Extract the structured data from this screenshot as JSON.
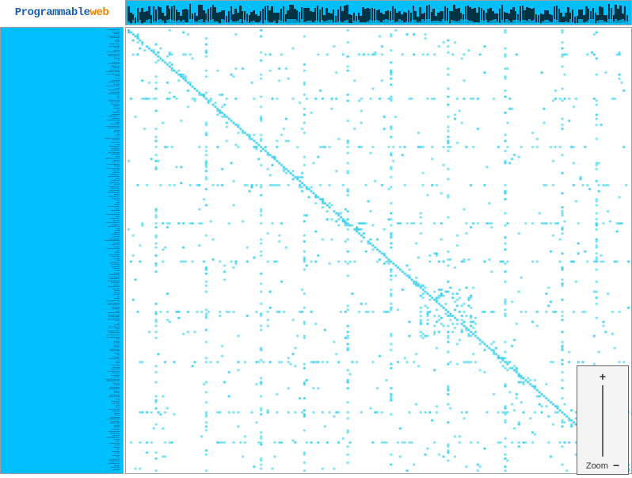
{
  "logo": {
    "part1": "Programmable",
    "part2": "web"
  },
  "zoom": {
    "plus": "+",
    "minus": "−",
    "label": "Zoom"
  },
  "colors": {
    "accent": "#00bfff",
    "cell_light": "#7fe8ff",
    "cell_med": "#33ccee",
    "border": "#9aa0a6",
    "bg": "#ffffff",
    "dark": "#003344"
  },
  "matrix": {
    "type": "adjacency-matrix",
    "n": 220,
    "seed": 42,
    "diagonal_density": 0.95,
    "near_diag_density": 0.18,
    "band_width": 6,
    "sparse_density": 0.01,
    "dense_rows": [
      12,
      34,
      58,
      77,
      96,
      115,
      140,
      165,
      190,
      205
    ],
    "dense_row_density": 0.22,
    "dense_block": {
      "start": 128,
      "end": 152,
      "density": 0.18
    },
    "cell_color": "#66ddf0",
    "cell_color_strong": "#33ccee"
  },
  "top_axis": {
    "n": 220,
    "dark_frac_min": 0.25,
    "dark_frac_max": 0.75
  },
  "left_axis": {
    "n": 220
  }
}
